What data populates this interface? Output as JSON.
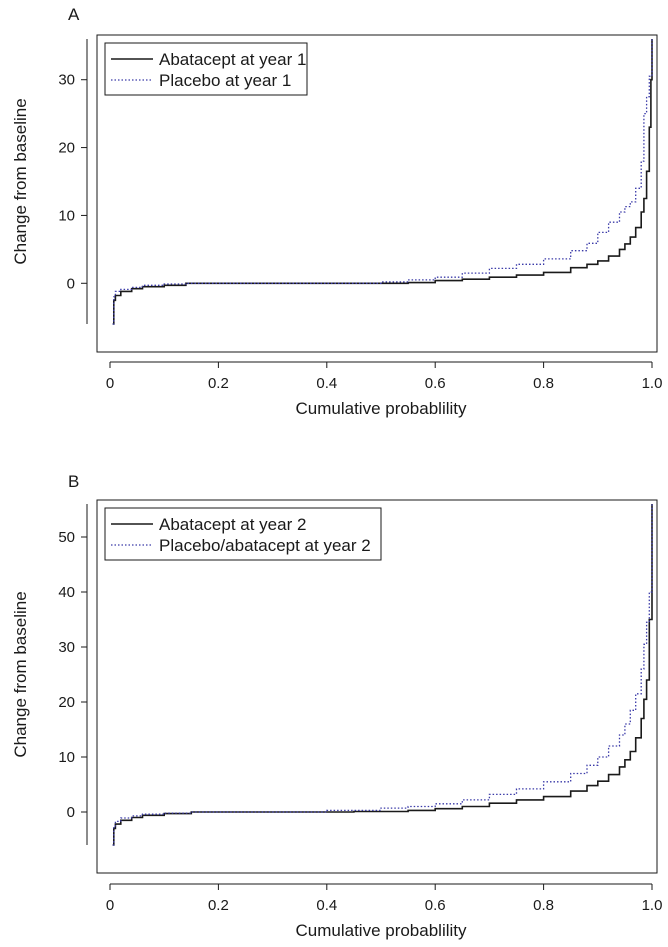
{
  "chart_data": [
    {
      "type": "line",
      "panel_label": "A",
      "xlabel": "Cumulative probablility",
      "ylabel": "Change from baseline",
      "xlim": [
        0,
        1.0
      ],
      "ylim": [
        -6,
        36
      ],
      "xticks": [
        0,
        0.2,
        0.4,
        0.6,
        0.8,
        1.0
      ],
      "xtick_labels": [
        "0",
        "0.2",
        "0.4",
        "0.6",
        "0.8",
        "1.0"
      ],
      "yticks": [
        0,
        10,
        20,
        30
      ],
      "ytick_labels": [
        "0",
        "10",
        "20",
        "30"
      ],
      "legend_position": "top-left",
      "series": [
        {
          "name": "Abatacept at year 1",
          "style": "solid",
          "color": "#1a1a1a",
          "points": [
            [
              0.005,
              -6
            ],
            [
              0.007,
              -2.5
            ],
            [
              0.01,
              -1.8
            ],
            [
              0.02,
              -1.2
            ],
            [
              0.04,
              -0.8
            ],
            [
              0.06,
              -0.5
            ],
            [
              0.1,
              -0.3
            ],
            [
              0.14,
              0
            ],
            [
              0.3,
              0
            ],
            [
              0.45,
              0
            ],
            [
              0.55,
              0.1
            ],
            [
              0.6,
              0.4
            ],
            [
              0.65,
              0.6
            ],
            [
              0.7,
              0.9
            ],
            [
              0.75,
              1.2
            ],
            [
              0.8,
              1.6
            ],
            [
              0.85,
              2.3
            ],
            [
              0.88,
              2.8
            ],
            [
              0.9,
              3.3
            ],
            [
              0.92,
              4.0
            ],
            [
              0.94,
              5.0
            ],
            [
              0.95,
              5.8
            ],
            [
              0.96,
              6.8
            ],
            [
              0.97,
              8.2
            ],
            [
              0.98,
              10.5
            ],
            [
              0.985,
              12.5
            ],
            [
              0.99,
              16.5
            ],
            [
              0.995,
              23
            ],
            [
              0.998,
              30
            ],
            [
              1.0,
              36
            ]
          ]
        },
        {
          "name": "Placebo at year 1",
          "style": "dotted",
          "color": "#3a3aa8",
          "points": [
            [
              0.005,
              -6
            ],
            [
              0.007,
              -2
            ],
            [
              0.01,
              -1.2
            ],
            [
              0.02,
              -0.9
            ],
            [
              0.04,
              -0.6
            ],
            [
              0.06,
              -0.3
            ],
            [
              0.1,
              -0.1
            ],
            [
              0.14,
              0
            ],
            [
              0.3,
              0
            ],
            [
              0.46,
              0
            ],
            [
              0.5,
              0.2
            ],
            [
              0.55,
              0.5
            ],
            [
              0.6,
              0.9
            ],
            [
              0.65,
              1.5
            ],
            [
              0.7,
              2.2
            ],
            [
              0.75,
              2.8
            ],
            [
              0.8,
              3.6
            ],
            [
              0.85,
              4.8
            ],
            [
              0.88,
              5.9
            ],
            [
              0.9,
              7.5
            ],
            [
              0.92,
              9.0
            ],
            [
              0.94,
              10.5
            ],
            [
              0.95,
              11.3
            ],
            [
              0.96,
              12.0
            ],
            [
              0.97,
              14.0
            ],
            [
              0.98,
              18.0
            ],
            [
              0.985,
              25.0
            ],
            [
              0.99,
              27.5
            ],
            [
              0.995,
              30.5
            ],
            [
              1.0,
              36
            ]
          ]
        }
      ]
    },
    {
      "type": "line",
      "panel_label": "B",
      "xlabel": "Cumulative probablility",
      "ylabel": "Change from baseline",
      "xlim": [
        0,
        1.0
      ],
      "ylim": [
        -6,
        56
      ],
      "xticks": [
        0,
        0.2,
        0.4,
        0.6,
        0.8,
        1.0
      ],
      "xtick_labels": [
        "0",
        "0.2",
        "0.4",
        "0.6",
        "0.8",
        "1.0"
      ],
      "yticks": [
        0,
        10,
        20,
        30,
        40,
        50
      ],
      "ytick_labels": [
        "0",
        "10",
        "20",
        "30",
        "40",
        "50"
      ],
      "legend_position": "top-left",
      "series": [
        {
          "name": "Abatacept at year 2",
          "style": "solid",
          "color": "#1a1a1a",
          "points": [
            [
              0.005,
              -6
            ],
            [
              0.007,
              -3
            ],
            [
              0.01,
              -2.2
            ],
            [
              0.02,
              -1.5
            ],
            [
              0.04,
              -1.0
            ],
            [
              0.06,
              -0.6
            ],
            [
              0.1,
              -0.3
            ],
            [
              0.15,
              0
            ],
            [
              0.3,
              0
            ],
            [
              0.45,
              0.1
            ],
            [
              0.55,
              0.3
            ],
            [
              0.6,
              0.6
            ],
            [
              0.65,
              1.0
            ],
            [
              0.7,
              1.6
            ],
            [
              0.75,
              2.2
            ],
            [
              0.8,
              2.8
            ],
            [
              0.85,
              3.8
            ],
            [
              0.88,
              4.8
            ],
            [
              0.9,
              5.6
            ],
            [
              0.92,
              6.8
            ],
            [
              0.94,
              8.2
            ],
            [
              0.95,
              9.5
            ],
            [
              0.96,
              11.0
            ],
            [
              0.97,
              13.5
            ],
            [
              0.98,
              17.0
            ],
            [
              0.985,
              20.5
            ],
            [
              0.99,
              24.0
            ],
            [
              0.995,
              35.0
            ],
            [
              1.0,
              56
            ]
          ]
        },
        {
          "name": "Placebo/abatacept at year 2",
          "style": "dotted",
          "color": "#3a3aa8",
          "points": [
            [
              0.005,
              -6
            ],
            [
              0.007,
              -2.5
            ],
            [
              0.01,
              -1.7
            ],
            [
              0.02,
              -1.1
            ],
            [
              0.04,
              -0.7
            ],
            [
              0.06,
              -0.4
            ],
            [
              0.1,
              -0.2
            ],
            [
              0.15,
              0
            ],
            [
              0.3,
              0
            ],
            [
              0.4,
              0.3
            ],
            [
              0.5,
              0.7
            ],
            [
              0.55,
              1.0
            ],
            [
              0.6,
              1.5
            ],
            [
              0.65,
              2.2
            ],
            [
              0.7,
              3.2
            ],
            [
              0.75,
              4.2
            ],
            [
              0.8,
              5.5
            ],
            [
              0.85,
              7.0
            ],
            [
              0.88,
              8.5
            ],
            [
              0.9,
              10.0
            ],
            [
              0.92,
              12.0
            ],
            [
              0.94,
              14.0
            ],
            [
              0.95,
              16.0
            ],
            [
              0.96,
              18.5
            ],
            [
              0.97,
              21.5
            ],
            [
              0.98,
              26.0
            ],
            [
              0.985,
              30.5
            ],
            [
              0.99,
              34.5
            ],
            [
              0.995,
              40.0
            ],
            [
              1.0,
              56
            ]
          ]
        }
      ]
    }
  ]
}
